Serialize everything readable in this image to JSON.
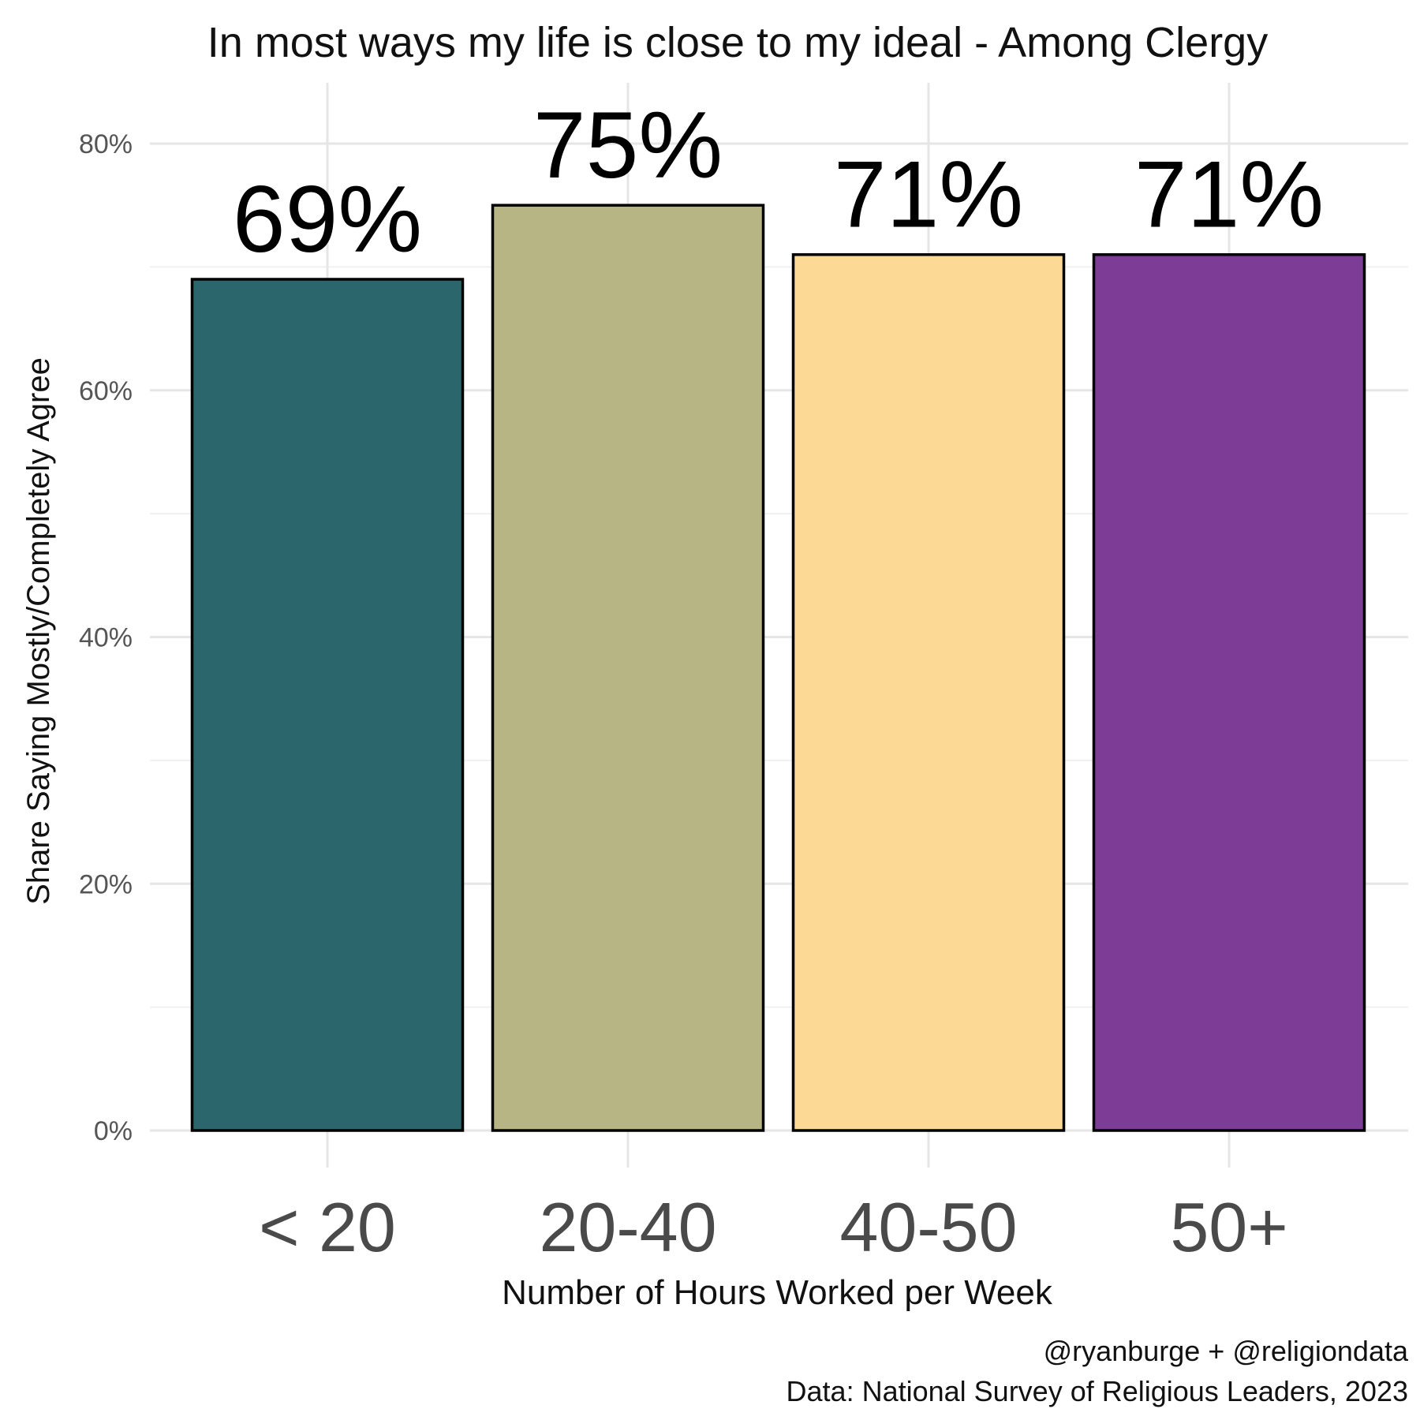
{
  "chart_data": {
    "type": "bar",
    "title": "In most ways my life is close to my ideal - Among Clergy",
    "xlabel": "Number of Hours Worked per Week",
    "ylabel": "Share Saying Mostly/Completely Agree",
    "categories": [
      "< 20",
      "20-40",
      "40-50",
      "50+"
    ],
    "values": [
      0.69,
      0.75,
      0.71,
      0.71
    ],
    "data_labels": [
      "69%",
      "75%",
      "71%",
      "71%"
    ],
    "colors": [
      "#2b666c",
      "#b6b583",
      "#fcda96",
      "#7d3c95"
    ],
    "bar_outline": "#000000",
    "ylim": [
      0,
      0.8
    ],
    "yticks": [
      0,
      0.2,
      0.4,
      0.6,
      0.8
    ],
    "ytick_labels": [
      "0%",
      "20%",
      "40%",
      "60%",
      "80%"
    ],
    "grid": true,
    "legend": "none"
  },
  "caption": {
    "line1": "@ryanburge + @religiondata",
    "line2": "Data: National Survey of Religious Leaders, 2023"
  }
}
